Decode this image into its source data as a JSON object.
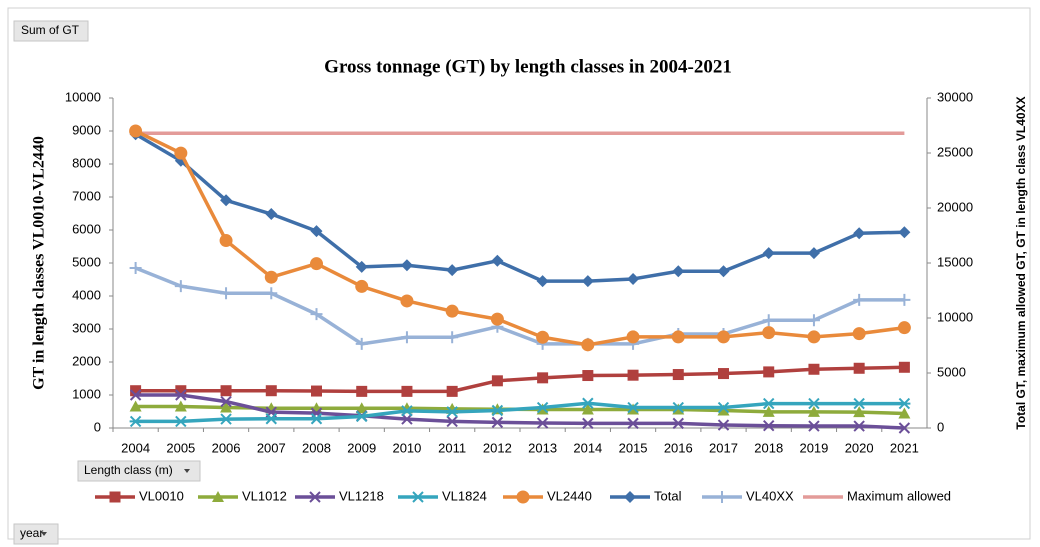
{
  "ui": {
    "values_button": "Sum of GT",
    "legend_field": "Length class (m)",
    "axis_field": "year"
  },
  "chart_data": {
    "type": "line",
    "title": "Gross tonnage (GT) by length classes in 2004-2021",
    "y_label": "GT in length classes VL0010-VL2440",
    "y2_label": "Total GT, maximum allowed GT, GT in length class VL40XX",
    "categories": [
      "2004",
      "2005",
      "2006",
      "2007",
      "2008",
      "2009",
      "2010",
      "2011",
      "2012",
      "2013",
      "2014",
      "2015",
      "2016",
      "2017",
      "2018",
      "2019",
      "2020",
      "2021"
    ],
    "ylim": [
      0,
      10000
    ],
    "yticks": [
      0,
      1000,
      2000,
      3000,
      4000,
      5000,
      6000,
      7000,
      8000,
      9000,
      10000
    ],
    "y2lim": [
      0,
      30000
    ],
    "y2ticks": [
      0,
      5000,
      10000,
      15000,
      20000,
      25000,
      30000
    ],
    "legend": "bottom",
    "series": [
      {
        "name": "VL0010",
        "color": "#b0403e",
        "marker": "square",
        "values": [
          1130,
          1130,
          1130,
          1130,
          1120,
          1110,
          1110,
          1110,
          1430,
          1520,
          1590,
          1600,
          1620,
          1650,
          1700,
          1780,
          1810,
          1840
        ]
      },
      {
        "name": "VL1012",
        "color": "#8eab3c",
        "marker": "triangle",
        "values": [
          650,
          650,
          620,
          600,
          600,
          600,
          600,
          580,
          570,
          560,
          560,
          560,
          560,
          530,
          490,
          490,
          480,
          440
        ]
      },
      {
        "name": "VL1218",
        "color": "#6b4f98",
        "marker": "x",
        "values": [
          1000,
          1000,
          800,
          480,
          450,
          370,
          270,
          200,
          170,
          150,
          140,
          140,
          140,
          90,
          70,
          60,
          60,
          0
        ]
      },
      {
        "name": "VL1824",
        "color": "#35a5bd",
        "marker": "star",
        "values": [
          200,
          200,
          270,
          280,
          280,
          350,
          520,
          490,
          530,
          620,
          750,
          620,
          620,
          620,
          740,
          740,
          740,
          740
        ]
      },
      {
        "name": "VL2440",
        "color": "#e98a3b",
        "marker": "circle",
        "values": [
          9000,
          8330,
          5680,
          4570,
          4980,
          4290,
          3850,
          3540,
          3300,
          2750,
          2520,
          2760,
          2760,
          2760,
          2890,
          2760,
          2860,
          3040
        ]
      },
      {
        "name": "Total",
        "color": "#3f6fa9",
        "marker": "diamond",
        "axis": "y2",
        "values": [
          26700,
          24300,
          20700,
          19450,
          17900,
          14650,
          14800,
          14350,
          15200,
          13350,
          13350,
          13550,
          14250,
          14250,
          15900,
          15900,
          17700,
          17800
        ]
      },
      {
        "name": "VL40XX",
        "color": "#98b2d7",
        "marker": "plus",
        "axis": "y2",
        "values": [
          14550,
          12900,
          12250,
          12250,
          10350,
          7650,
          8250,
          8250,
          9200,
          7650,
          7650,
          7650,
          8550,
          8550,
          9800,
          9800,
          11650,
          11650
        ]
      },
      {
        "name": "Maximum allowed",
        "color": "#e39b99",
        "marker": "none",
        "axis": "y2",
        "values": [
          26800,
          26800,
          26800,
          26800,
          26800,
          26800,
          26800,
          26800,
          26800,
          26800,
          26800,
          26800,
          26800,
          26800,
          26800,
          26800,
          26800,
          26800
        ]
      }
    ]
  }
}
